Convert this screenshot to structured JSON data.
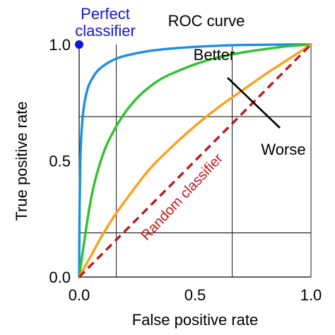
{
  "chart_data": {
    "type": "line",
    "title": "ROC curve",
    "xlabel": "False positive rate",
    "ylabel": "True positive rate",
    "xlim": [
      0,
      1
    ],
    "ylim": [
      0,
      1
    ],
    "xticks": [
      {
        "value": 0,
        "label": "0.0"
      },
      {
        "value": 0.5,
        "label": "0.5"
      },
      {
        "value": 1,
        "label": "1.0"
      }
    ],
    "yticks": [
      {
        "value": 0,
        "label": "0.0"
      },
      {
        "value": 0.5,
        "label": "0.5"
      },
      {
        "value": 1,
        "label": "1.0"
      }
    ],
    "gridlines_x": [
      0.16,
      0.66
    ],
    "gridlines_y": [
      0.19,
      0.69
    ],
    "series": [
      {
        "color": "#1a8fe3",
        "x": [
          0,
          0.002,
          0.005,
          0.01,
          0.02,
          0.04,
          0.07,
          0.1,
          0.15,
          0.2,
          0.3,
          0.4,
          0.5,
          0.6,
          0.7,
          0.8,
          0.9,
          1.0
        ],
        "y": [
          0,
          0.3,
          0.5,
          0.62,
          0.73,
          0.82,
          0.875,
          0.905,
          0.935,
          0.952,
          0.972,
          0.983,
          0.99,
          0.995,
          0.998,
          0.999,
          1.0,
          1.0
        ]
      },
      {
        "color": "#2ec22e",
        "x": [
          0,
          0.05,
          0.1,
          0.15,
          0.2,
          0.25,
          0.3,
          0.35,
          0.4,
          0.5,
          0.6,
          0.7,
          0.8,
          0.9,
          1.0
        ],
        "y": [
          0,
          0.33,
          0.52,
          0.63,
          0.71,
          0.77,
          0.815,
          0.85,
          0.875,
          0.915,
          0.945,
          0.965,
          0.98,
          0.993,
          1.0
        ]
      },
      {
        "color": "#ff9f1c",
        "x": [
          0,
          0.05,
          0.1,
          0.15,
          0.2,
          0.3,
          0.4,
          0.5,
          0.6,
          0.7,
          0.8,
          0.9,
          1.0
        ],
        "y": [
          0,
          0.09,
          0.18,
          0.26,
          0.33,
          0.46,
          0.56,
          0.65,
          0.73,
          0.8,
          0.87,
          0.935,
          1.0
        ]
      },
      {
        "color": "#c0171e",
        "dashed": true,
        "x": [
          0,
          1
        ],
        "y": [
          0,
          1
        ]
      }
    ],
    "points": [
      {
        "x": 0,
        "y": 1,
        "color": "#1414d4"
      }
    ],
    "annotations": {
      "perfect_line1": "Perfect",
      "perfect_line2": "classifier",
      "perfect_color": "#1414d4",
      "better": "Better",
      "worse": "Worse",
      "random": "Random classifier",
      "random_color": "#c0171e",
      "arrow_color": "#000000"
    },
    "grid": true
  }
}
